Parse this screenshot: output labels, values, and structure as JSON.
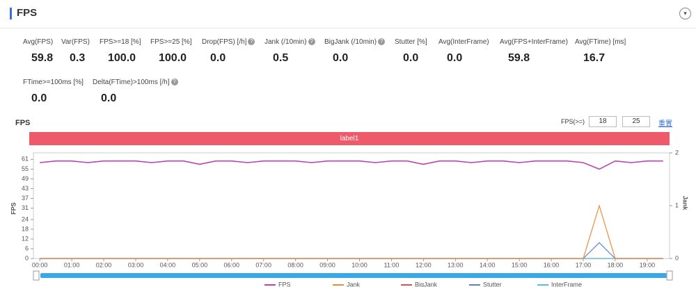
{
  "header": {
    "title": "FPS"
  },
  "stats": [
    [
      {
        "label": "Avg(FPS)",
        "value": "59.8",
        "help": false
      },
      {
        "label": "Var(FPS)",
        "value": "0.3",
        "help": false
      },
      {
        "label": "FPS>=18 [%]",
        "value": "100.0",
        "help": false
      },
      {
        "label": "FPS>=25 [%]",
        "value": "100.0",
        "help": false
      },
      {
        "label": "Drop(FPS) [/h]",
        "value": "0.0",
        "help": true
      },
      {
        "label": "Jank (/10min)",
        "value": "0.5",
        "help": true
      },
      {
        "label": "BigJank (/10min)",
        "value": "0.0",
        "help": true
      },
      {
        "label": "Stutter [%]",
        "value": "0.0",
        "help": false
      },
      {
        "label": "Avg(InterFrame)",
        "value": "0.0",
        "help": false
      },
      {
        "label": "Avg(FPS+InterFrame)",
        "value": "59.8",
        "help": false
      },
      {
        "label": "Avg(FTime) [ms]",
        "value": "16.7",
        "help": false
      }
    ],
    [
      {
        "label": "FTime>=100ms [%]",
        "value": "0.0",
        "help": false
      },
      {
        "label": "Delta(FTime)>100ms [/h]",
        "value": "0.0",
        "help": true
      }
    ]
  ],
  "chart_data": {
    "type": "line",
    "title": "FPS",
    "band_label": "label1",
    "threshold_label": "FPS(>=)",
    "thresholds": [
      "18",
      "25"
    ],
    "reset_link": "重置",
    "ylabel": "FPS",
    "y2label": "Jank",
    "x": [
      0,
      0.5,
      1,
      1.5,
      2,
      2.5,
      3,
      3.5,
      4,
      4.5,
      5,
      5.5,
      6,
      6.5,
      7,
      7.5,
      8,
      8.5,
      9,
      9.5,
      10,
      10.5,
      11,
      11.5,
      12,
      12.5,
      13,
      13.5,
      14,
      14.5,
      15,
      15.5,
      16,
      16.5,
      17,
      17.5,
      18,
      18.5,
      19,
      19.5
    ],
    "xlim": [
      -0.2,
      19.7
    ],
    "xticks": [
      {
        "value": 0,
        "label": "00:00"
      },
      {
        "value": 1,
        "label": "01:00"
      },
      {
        "value": 2,
        "label": "02:00"
      },
      {
        "value": 3,
        "label": "03:00"
      },
      {
        "value": 4,
        "label": "04:00"
      },
      {
        "value": 5,
        "label": "05:00"
      },
      {
        "value": 6,
        "label": "06:00"
      },
      {
        "value": 7,
        "label": "07:00"
      },
      {
        "value": 8,
        "label": "08:00"
      },
      {
        "value": 9,
        "label": "09:00"
      },
      {
        "value": 10,
        "label": "10:00"
      },
      {
        "value": 11,
        "label": "11:00"
      },
      {
        "value": 12,
        "label": "12:00"
      },
      {
        "value": 13,
        "label": "13:00"
      },
      {
        "value": 14,
        "label": "14:00"
      },
      {
        "value": 15,
        "label": "15:00"
      },
      {
        "value": 16,
        "label": "16:00"
      },
      {
        "value": 17,
        "label": "17:00"
      },
      {
        "value": 18,
        "label": "18:00"
      },
      {
        "value": 19,
        "label": "19:00"
      }
    ],
    "ylim": [
      0,
      65
    ],
    "yticks": [
      0,
      6,
      12,
      18,
      24,
      31,
      37,
      43,
      49,
      55,
      61
    ],
    "y2lim": [
      0,
      2
    ],
    "y2ticks": [
      0,
      1,
      2
    ],
    "series": [
      {
        "name": "FPS",
        "color": "#c040b0",
        "values": [
          59,
          60,
          60,
          59,
          60,
          60,
          60,
          59,
          60,
          60,
          58,
          60,
          60,
          59,
          60,
          60,
          60,
          59,
          60,
          60,
          60,
          59,
          60,
          60,
          58,
          60,
          60,
          59,
          60,
          60,
          59,
          60,
          60,
          60,
          59,
          55,
          60,
          59,
          60,
          60
        ]
      },
      {
        "name": "Jank",
        "color": "#f08a3c",
        "axis": "y2",
        "values": [
          0,
          0,
          0,
          0,
          0,
          0,
          0,
          0,
          0,
          0,
          0,
          0,
          0,
          0,
          0,
          0,
          0,
          0,
          0,
          0,
          0,
          0,
          0,
          0,
          0,
          0,
          0,
          0,
          0,
          0,
          0,
          0,
          0,
          0,
          0,
          1,
          0,
          0,
          0,
          0
        ]
      },
      {
        "name": "BigJank",
        "color": "#e05050",
        "axis": "y2",
        "values": [
          0,
          0,
          0,
          0,
          0,
          0,
          0,
          0,
          0,
          0,
          0,
          0,
          0,
          0,
          0,
          0,
          0,
          0,
          0,
          0,
          0,
          0,
          0,
          0,
          0,
          0,
          0,
          0,
          0,
          0,
          0,
          0,
          0,
          0,
          0,
          0,
          0,
          0,
          0,
          0
        ]
      },
      {
        "name": "Stutter",
        "color": "#5b7fd6",
        "axis": "y2",
        "values": [
          0,
          0,
          0,
          0,
          0,
          0,
          0,
          0,
          0,
          0,
          0,
          0,
          0,
          0,
          0,
          0,
          0,
          0,
          0,
          0,
          0,
          0,
          0,
          0,
          0,
          0,
          0,
          0,
          0,
          0,
          0,
          0,
          0,
          0,
          0,
          0.3,
          0,
          0,
          0,
          0
        ]
      },
      {
        "name": "InterFrame",
        "color": "#4fc4e0",
        "axis": "y2",
        "values": [
          0,
          0,
          0,
          0,
          0,
          0,
          0,
          0,
          0,
          0,
          0,
          0,
          0,
          0,
          0,
          0,
          0,
          0,
          0,
          0,
          0,
          0,
          0,
          0,
          0,
          0,
          0,
          0,
          0,
          0,
          0,
          0,
          0,
          0,
          0,
          0,
          0,
          0,
          0,
          0
        ]
      }
    ]
  }
}
